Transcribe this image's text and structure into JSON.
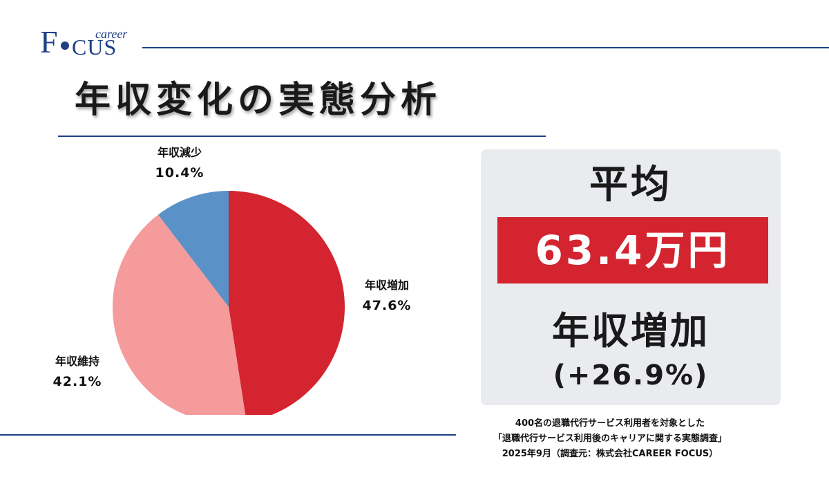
{
  "logo": {
    "f": "F",
    "cus": "CUS",
    "career": "career"
  },
  "title": "年収変化の実態分析",
  "chart_data": {
    "type": "pie",
    "title": "年収変化の実態分析",
    "start_angle_deg": 0,
    "direction": "clockwise",
    "slices": [
      {
        "label": "年収増加",
        "value": 47.6,
        "value_text": "47.6%",
        "color": "#d3242f"
      },
      {
        "label": "年収維持",
        "value": 42.1,
        "value_text": "42.1%",
        "color": "#f59b9b"
      },
      {
        "label": "年収減少",
        "value": 10.4,
        "value_text": "10.4%",
        "color": "#5a91c6"
      }
    ]
  },
  "summary": {
    "average_label": "平均",
    "amount": "63.4万円",
    "change_label": "年収増加",
    "change_pct": "(+26.9%)"
  },
  "source": {
    "line1": "400名の退職代行サービス利用者を対象とした",
    "line2": "「退職代行サービス利用後のキャリアに関する実態調査」",
    "line3": "2025年9月（調査元：株式会社CAREER FOCUS）"
  },
  "colors": {
    "brand": "#1f3f86",
    "accent": "#d3242f",
    "panel": "#e9ebef"
  }
}
